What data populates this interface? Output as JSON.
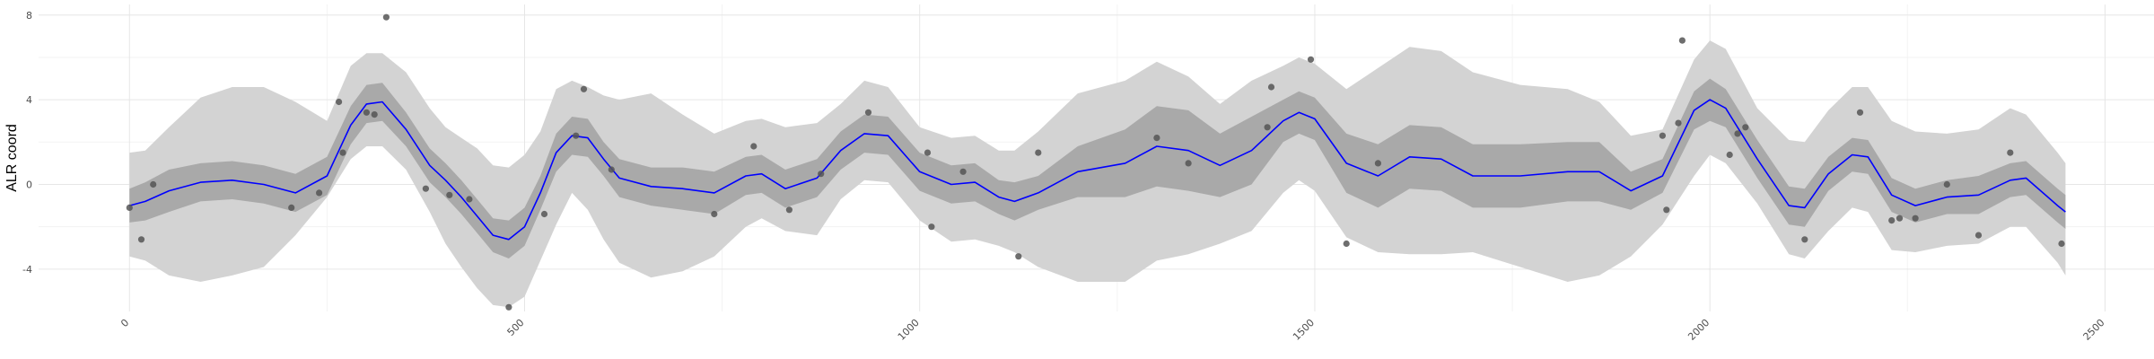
{
  "chart_data": {
    "type": "line",
    "title": "",
    "xlabel": "",
    "ylabel": "ALR coord",
    "xlim": [
      -115,
      2562
    ],
    "ylim": [
      -6.0,
      8.5
    ],
    "x_ticks": [
      0,
      500,
      1000,
      1500,
      2000,
      2500
    ],
    "x_tick_labels": [
      "0",
      "500",
      "1000",
      "1500",
      "2000",
      "2500"
    ],
    "y_ticks": [
      -4,
      0,
      4,
      8
    ],
    "y_tick_labels": [
      "-4",
      "0",
      "4",
      "8"
    ],
    "grid": true,
    "legend": "none",
    "colors": {
      "mean_line": "#0000ff",
      "inner_band": "#a9a9a9",
      "outer_band": "#d3d3d3",
      "points": "#555555",
      "grid_major": "#e6e6e6",
      "grid_minor": "#f3f3f3"
    },
    "series": [
      {
        "type": "line",
        "x": [
          0,
          20,
          50,
          90,
          130,
          170,
          210,
          250,
          280,
          300,
          320,
          350,
          380,
          400,
          420,
          440,
          460,
          480,
          500,
          520,
          540,
          560,
          580,
          600,
          620,
          660,
          700,
          740,
          780,
          800,
          830,
          870,
          900,
          930,
          960,
          1000,
          1040,
          1070,
          1100,
          1120,
          1150,
          1200,
          1260,
          1300,
          1340,
          1380,
          1420,
          1460,
          1480,
          1500,
          1540,
          1580,
          1620,
          1660,
          1700,
          1760,
          1820,
          1860,
          1900,
          1940,
          1980,
          2000,
          2020,
          2060,
          2100,
          2120,
          2150,
          2180,
          2200,
          2230,
          2260,
          2300,
          2340,
          2380,
          2400,
          2440,
          2450
        ],
        "y": [
          -1.0,
          -0.8,
          -0.3,
          0.1,
          0.2,
          0.0,
          -0.4,
          0.4,
          2.8,
          3.8,
          3.9,
          2.6,
          0.9,
          0.2,
          -0.6,
          -1.5,
          -2.4,
          -2.6,
          -2.0,
          -0.4,
          1.5,
          2.3,
          2.2,
          1.2,
          0.3,
          -0.1,
          -0.2,
          -0.4,
          0.4,
          0.5,
          -0.2,
          0.3,
          1.6,
          2.4,
          2.3,
          0.6,
          0.0,
          0.1,
          -0.6,
          -0.8,
          -0.4,
          0.6,
          1.0,
          1.8,
          1.6,
          0.9,
          1.6,
          3.0,
          3.4,
          3.1,
          1.0,
          0.4,
          1.3,
          1.2,
          0.4,
          0.4,
          0.6,
          0.6,
          -0.3,
          0.4,
          3.5,
          4.0,
          3.6,
          1.2,
          -1.0,
          -1.1,
          0.5,
          1.4,
          1.3,
          -0.5,
          -1.0,
          -0.6,
          -0.5,
          0.2,
          0.3,
          -1.0,
          -1.3
        ]
      },
      {
        "type": "band",
        "level": "inner",
        "x": [
          0,
          20,
          50,
          90,
          130,
          170,
          210,
          250,
          280,
          300,
          320,
          350,
          380,
          400,
          420,
          440,
          460,
          480,
          500,
          520,
          540,
          560,
          580,
          600,
          620,
          660,
          700,
          740,
          780,
          800,
          830,
          870,
          900,
          930,
          960,
          1000,
          1040,
          1070,
          1100,
          1120,
          1150,
          1200,
          1260,
          1300,
          1340,
          1380,
          1420,
          1460,
          1480,
          1500,
          1540,
          1580,
          1620,
          1660,
          1700,
          1760,
          1820,
          1860,
          1900,
          1940,
          1980,
          2000,
          2020,
          2060,
          2100,
          2120,
          2150,
          2180,
          2200,
          2230,
          2260,
          2300,
          2340,
          2380,
          2400,
          2440,
          2450
        ],
        "lower": [
          -1.8,
          -1.7,
          -1.3,
          -0.8,
          -0.7,
          -0.9,
          -1.3,
          -0.5,
          1.9,
          2.9,
          3.0,
          1.8,
          0.1,
          -0.6,
          -1.4,
          -2.3,
          -3.2,
          -3.5,
          -2.9,
          -1.2,
          0.6,
          1.4,
          1.3,
          0.4,
          -0.6,
          -1.0,
          -1.2,
          -1.4,
          -0.5,
          -0.4,
          -1.1,
          -0.6,
          0.7,
          1.5,
          1.4,
          -0.3,
          -0.9,
          -0.8,
          -1.4,
          -1.7,
          -1.2,
          -0.6,
          -0.6,
          -0.1,
          -0.3,
          -0.6,
          0.0,
          2.0,
          2.4,
          2.1,
          -0.4,
          -1.1,
          -0.2,
          -0.3,
          -1.1,
          -1.1,
          -0.8,
          -0.8,
          -1.2,
          -0.4,
          2.6,
          3.0,
          2.7,
          0.3,
          -1.9,
          -2.0,
          -0.3,
          0.6,
          0.5,
          -1.3,
          -1.8,
          -1.4,
          -1.4,
          -0.6,
          -0.5,
          -1.8,
          -2.1
        ],
        "upper": [
          -0.2,
          0.1,
          0.7,
          1.0,
          1.1,
          0.9,
          0.5,
          1.3,
          3.7,
          4.7,
          4.8,
          3.4,
          1.7,
          1.0,
          0.2,
          -0.7,
          -1.6,
          -1.7,
          -1.1,
          0.4,
          2.4,
          3.2,
          3.1,
          2.0,
          1.2,
          0.8,
          0.8,
          0.6,
          1.3,
          1.4,
          0.7,
          1.2,
          2.5,
          3.3,
          3.2,
          1.5,
          0.9,
          1.0,
          0.2,
          0.1,
          0.4,
          1.8,
          2.6,
          3.7,
          3.5,
          2.4,
          3.2,
          4.0,
          4.4,
          4.1,
          2.4,
          1.9,
          2.8,
          2.7,
          1.9,
          1.9,
          2.0,
          2.0,
          0.6,
          1.2,
          4.4,
          5.0,
          4.5,
          2.1,
          -0.1,
          -0.2,
          1.3,
          2.2,
          2.1,
          0.3,
          -0.2,
          0.2,
          0.4,
          1.0,
          1.1,
          -0.2,
          -0.5
        ]
      },
      {
        "type": "band",
        "level": "outer",
        "x": [
          0,
          20,
          50,
          90,
          130,
          170,
          210,
          250,
          280,
          300,
          320,
          350,
          380,
          400,
          420,
          440,
          460,
          480,
          500,
          520,
          540,
          560,
          580,
          600,
          620,
          660,
          700,
          740,
          780,
          800,
          830,
          870,
          900,
          930,
          960,
          1000,
          1040,
          1070,
          1100,
          1120,
          1150,
          1200,
          1260,
          1300,
          1340,
          1380,
          1420,
          1460,
          1480,
          1500,
          1540,
          1580,
          1620,
          1660,
          1700,
          1760,
          1820,
          1860,
          1900,
          1940,
          1980,
          2000,
          2020,
          2060,
          2100,
          2120,
          2150,
          2180,
          2200,
          2230,
          2260,
          2300,
          2340,
          2380,
          2400,
          2440,
          2450
        ],
        "lower": [
          -3.4,
          -3.6,
          -4.3,
          -4.6,
          -4.3,
          -3.9,
          -2.4,
          -0.6,
          1.2,
          1.8,
          1.8,
          0.7,
          -1.3,
          -2.8,
          -3.9,
          -4.9,
          -5.7,
          -5.8,
          -5.3,
          -3.6,
          -1.9,
          -0.4,
          -1.2,
          -2.6,
          -3.7,
          -4.4,
          -4.1,
          -3.4,
          -2.0,
          -1.6,
          -2.2,
          -2.4,
          -0.7,
          0.2,
          0.1,
          -1.7,
          -2.7,
          -2.6,
          -2.9,
          -3.2,
          -3.9,
          -4.6,
          -4.6,
          -3.6,
          -3.3,
          -2.8,
          -2.2,
          -0.4,
          0.2,
          -0.3,
          -2.5,
          -3.2,
          -3.3,
          -3.3,
          -3.2,
          -3.9,
          -4.6,
          -4.3,
          -3.4,
          -1.9,
          0.4,
          1.4,
          1.0,
          -0.9,
          -3.3,
          -3.5,
          -2.2,
          -1.1,
          -1.3,
          -3.1,
          -3.2,
          -2.9,
          -2.8,
          -2.0,
          -2.0,
          -3.7,
          -4.3
        ],
        "upper": [
          1.5,
          1.6,
          2.7,
          4.1,
          4.6,
          4.6,
          3.9,
          3.0,
          5.6,
          6.2,
          6.2,
          5.3,
          3.6,
          2.7,
          2.2,
          1.7,
          0.9,
          0.8,
          1.4,
          2.5,
          4.5,
          4.9,
          4.6,
          4.2,
          4.0,
          4.3,
          3.3,
          2.4,
          3.0,
          3.1,
          2.7,
          2.9,
          3.8,
          4.9,
          4.6,
          2.7,
          2.2,
          2.3,
          1.6,
          1.6,
          2.5,
          4.3,
          4.9,
          5.8,
          5.1,
          3.8,
          4.9,
          5.6,
          6.0,
          5.7,
          4.5,
          5.5,
          6.5,
          6.3,
          5.3,
          4.7,
          4.5,
          3.9,
          2.3,
          2.6,
          5.9,
          6.8,
          6.4,
          3.6,
          2.1,
          2.0,
          3.5,
          4.6,
          4.6,
          3.0,
          2.5,
          2.4,
          2.6,
          3.6,
          3.3,
          1.5,
          1.0
        ]
      },
      {
        "type": "scatter",
        "x": [
          0,
          15,
          30,
          205,
          240,
          265,
          270,
          300,
          310,
          325,
          375,
          405,
          430,
          480,
          525,
          565,
          575,
          610,
          740,
          790,
          835,
          875,
          935,
          1010,
          1015,
          1055,
          1125,
          1150,
          1300,
          1340,
          1440,
          1445,
          1495,
          1540,
          1580,
          1940,
          1945,
          1960,
          1965,
          2025,
          2035,
          2045,
          2120,
          2190,
          2230,
          2240,
          2260,
          2300,
          2340,
          2380,
          2445
        ],
        "y": [
          -1.1,
          -2.6,
          0.0,
          -1.1,
          -0.4,
          3.9,
          1.5,
          3.4,
          3.3,
          7.9,
          -0.2,
          -0.5,
          -0.7,
          -5.8,
          -1.4,
          2.3,
          4.5,
          0.7,
          -1.4,
          1.8,
          -1.2,
          0.5,
          3.4,
          1.5,
          -2.0,
          0.6,
          -3.4,
          1.5,
          2.2,
          1.0,
          2.7,
          4.6,
          5.9,
          -2.8,
          1.0,
          2.3,
          -1.2,
          2.9,
          6.8,
          1.4,
          2.4,
          2.7,
          -2.6,
          3.4,
          -1.7,
          -1.6,
          -1.6,
          0.0,
          -2.4,
          1.5,
          -2.8
        ]
      }
    ]
  }
}
